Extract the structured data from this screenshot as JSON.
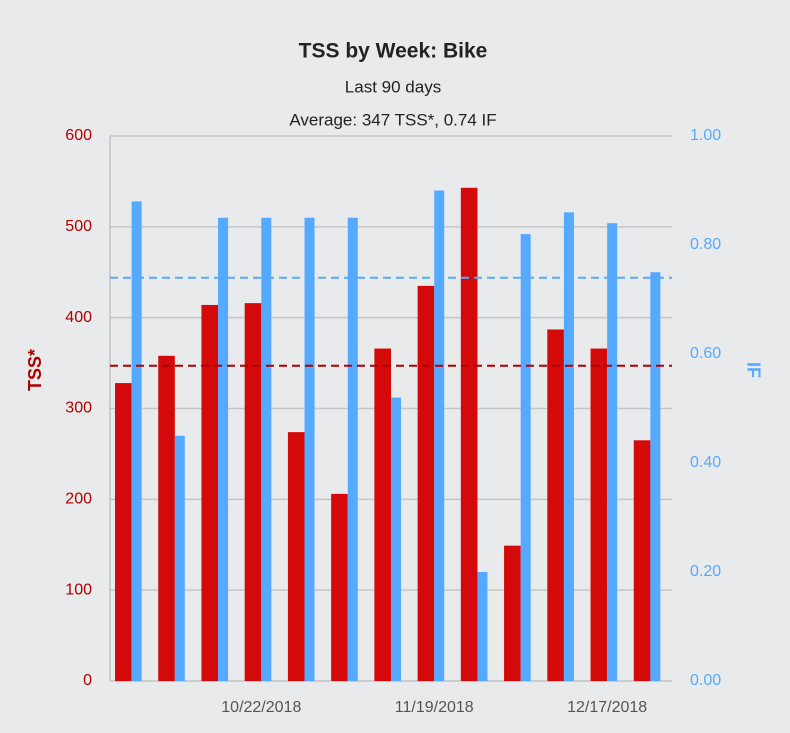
{
  "chart_data": {
    "type": "bar",
    "title": "TSS by Week: Bike",
    "subtitle": "Last 90 days",
    "annotation": "Average: 347 TSS*, 0.74 IF",
    "categories": [
      null,
      null,
      null,
      "10/22/2018",
      null,
      null,
      null,
      "11/19/2018",
      null,
      null,
      null,
      "12/17/2018",
      null
    ],
    "series": [
      {
        "name": "TSS*",
        "color": "#d40a0a",
        "average": 347,
        "values": [
          328,
          358,
          414,
          416,
          274,
          206,
          366,
          435,
          543,
          149,
          387,
          366,
          265
        ]
      },
      {
        "name": "IF",
        "color": "#55aaff",
        "axis": "y2",
        "average": 0.74,
        "values": [
          0.88,
          0.45,
          0.85,
          0.85,
          0.85,
          0.85,
          0.52,
          0.9,
          0.2,
          0.82,
          0.86,
          0.84,
          0.75
        ]
      }
    ],
    "y_label": "TSS*",
    "y2_label": "IF",
    "ylim": [
      0,
      600
    ],
    "yticks": [
      0,
      100,
      200,
      300,
      400,
      500,
      600
    ],
    "y2lim": [
      0,
      1
    ],
    "y2ticks": [
      {
        "value": 0,
        "label": "0.00"
      },
      {
        "value": 0.2,
        "label": "0.20"
      },
      {
        "value": 0.4,
        "label": "0.40"
      },
      {
        "value": 0.6,
        "label": "0.60"
      },
      {
        "value": 0.8,
        "label": "0.80"
      },
      {
        "value": 1,
        "label": "1.00"
      }
    ],
    "grid": true
  }
}
